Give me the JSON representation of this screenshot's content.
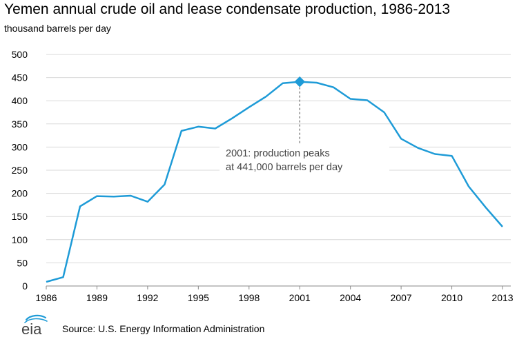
{
  "header": {
    "title": "Yemen annual crude oil and lease condensate production, 1986-2013",
    "units": "thousand barrels per day"
  },
  "footer": {
    "source": "Source: U.S. Energy Information Administration",
    "logo_text": "eia"
  },
  "chart_data": {
    "type": "line",
    "title": "Yemen annual crude oil and lease condensate production, 1986-2013",
    "ylabel": "thousand barrels per day",
    "xlabel": "",
    "xlim": [
      1986,
      2013
    ],
    "ylim": [
      0,
      500
    ],
    "x_ticks": [
      1986,
      1989,
      1992,
      1995,
      1998,
      2001,
      2004,
      2007,
      2010,
      2013
    ],
    "y_ticks": [
      0,
      50,
      100,
      150,
      200,
      250,
      300,
      350,
      400,
      450,
      500
    ],
    "grid": "horizontal",
    "legend": "none",
    "line_color": "#1E9BD7",
    "series": [
      {
        "x": [
          1986,
          1987,
          1988,
          1989,
          1990,
          1991,
          1992,
          1993,
          1994,
          1995,
          1996,
          1997,
          1998,
          1999,
          2000,
          2001,
          2002,
          2003,
          2004,
          2005,
          2006,
          2007,
          2008,
          2009,
          2010,
          2011,
          2012,
          2013
        ],
        "values": [
          9,
          19,
          172,
          194,
          193,
          195,
          182,
          219,
          335,
          344,
          340,
          362,
          386,
          409,
          438,
          441,
          439,
          429,
          404,
          401,
          375,
          318,
          298,
          285,
          281,
          215,
          170,
          128
        ]
      }
    ],
    "highlight": {
      "x": 2001,
      "y": 441
    },
    "annotation": {
      "line1": "2001: production peaks",
      "line2": "at 441,000 barrels per day"
    }
  }
}
